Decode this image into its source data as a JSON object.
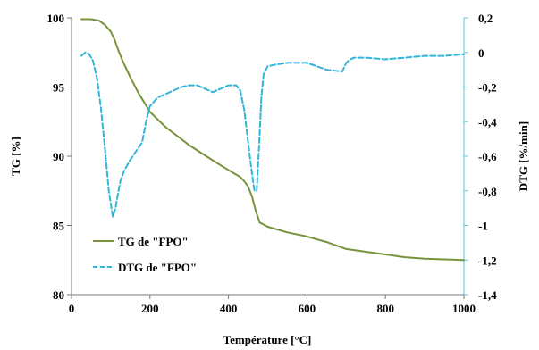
{
  "chart_data": {
    "type": "line",
    "xlabel": "Température [°C]",
    "ylabel_left": "TG [%]",
    "ylabel_right": "DTG [%/min]",
    "xlim": [
      0,
      1000
    ],
    "ylim_left": [
      80,
      100
    ],
    "ylim_right": [
      -1.4,
      0.2
    ],
    "x_ticks": [
      "0",
      "200",
      "400",
      "600",
      "800",
      "1000"
    ],
    "y_left_ticks": [
      "80",
      "85",
      "90",
      "95",
      "100"
    ],
    "y_right_ticks": [
      "-1,4",
      "-1,2",
      "-1",
      "-0,8",
      "-0,6",
      "-0,4",
      "-0,2",
      "0",
      "0,2"
    ],
    "grid": false,
    "legend_position": "bottom-left",
    "series": [
      {
        "name": "TG de \"FPO\"",
        "axis": "left",
        "color": "#77933c",
        "style": "solid",
        "x": [
          25,
          50,
          70,
          85,
          100,
          110,
          120,
          130,
          140,
          150,
          170,
          200,
          240,
          300,
          360,
          400,
          430,
          440,
          450,
          460,
          470,
          480,
          500,
          550,
          600,
          650,
          700,
          750,
          800,
          850,
          900,
          950,
          1000
        ],
        "y": [
          99.9,
          99.9,
          99.8,
          99.5,
          99.0,
          98.4,
          97.6,
          96.9,
          96.3,
          95.7,
          94.6,
          93.2,
          92.1,
          90.8,
          89.7,
          89.0,
          88.5,
          88.2,
          87.8,
          87.1,
          86.0,
          85.2,
          84.9,
          84.5,
          84.2,
          83.8,
          83.3,
          83.1,
          82.9,
          82.7,
          82.6,
          82.55,
          82.5
        ]
      },
      {
        "name": "DTG de \"FPO\"",
        "axis": "right",
        "color": "#33b5d9",
        "style": "dashed",
        "x": [
          25,
          35,
          45,
          55,
          65,
          75,
          85,
          95,
          105,
          112,
          118,
          125,
          135,
          150,
          165,
          180,
          190,
          200,
          220,
          240,
          260,
          280,
          300,
          320,
          340,
          360,
          380,
          400,
          420,
          430,
          440,
          450,
          460,
          466,
          472,
          478,
          484,
          490,
          500,
          520,
          550,
          600,
          650,
          690,
          700,
          710,
          720,
          750,
          800,
          850,
          900,
          950,
          1000
        ],
        "y": [
          -0.02,
          0.0,
          -0.01,
          -0.05,
          -0.15,
          -0.32,
          -0.55,
          -0.8,
          -0.95,
          -0.9,
          -0.82,
          -0.74,
          -0.68,
          -0.62,
          -0.57,
          -0.52,
          -0.4,
          -0.31,
          -0.26,
          -0.24,
          -0.22,
          -0.2,
          -0.19,
          -0.19,
          -0.21,
          -0.23,
          -0.21,
          -0.19,
          -0.19,
          -0.22,
          -0.33,
          -0.52,
          -0.7,
          -0.8,
          -0.8,
          -0.55,
          -0.25,
          -0.12,
          -0.08,
          -0.07,
          -0.06,
          -0.06,
          -0.1,
          -0.11,
          -0.06,
          -0.04,
          -0.03,
          -0.03,
          -0.04,
          -0.03,
          -0.02,
          -0.02,
          -0.01
        ]
      }
    ]
  }
}
